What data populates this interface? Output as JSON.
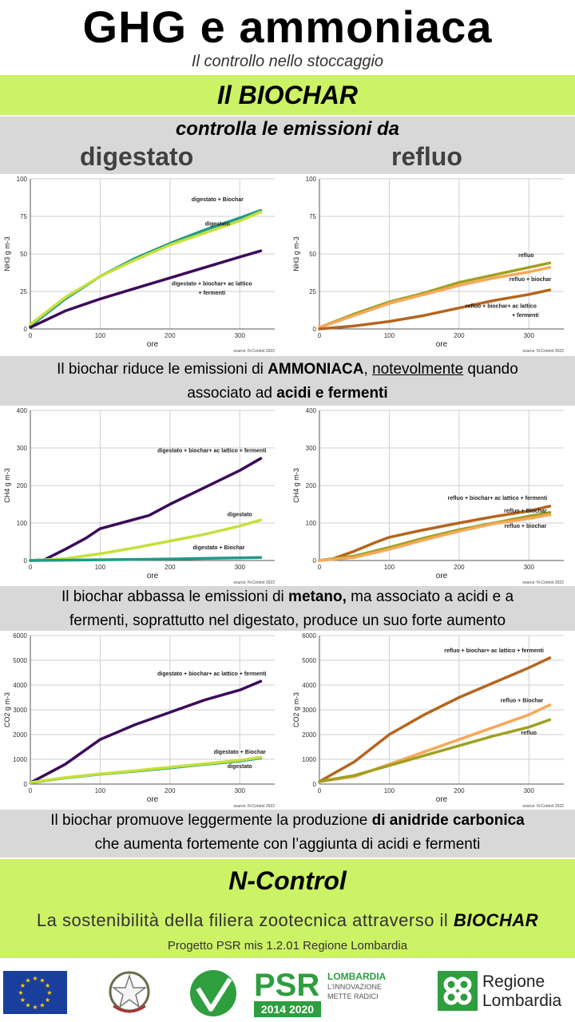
{
  "header": {
    "title": "GHG e ammoniaca",
    "subtitle": "Il controllo nello stoccaggio",
    "biochar_banner": "Il BIOCHAR",
    "controls": "controlla le emissioni da",
    "col_left": "digestato",
    "col_right": "refluo"
  },
  "captions": {
    "c1_a": "Il biochar riduce le emissioni di ",
    "c1_b": "AMMONIACA",
    "c1_c": ", ",
    "c1_d": "notevolmente",
    "c1_e": " quando",
    "c1_f": "associato ad ",
    "c1_g": "acidi e fermenti",
    "c2_a": "Il biochar abbassa le emissioni di ",
    "c2_b": "metano,",
    "c2_c": " ma associato a acidi e a",
    "c2_d": "fermenti, soprattutto nel digestato, produce un suo forte aumento",
    "c3_a": "Il biochar promuove leggermente la produzione ",
    "c3_b": "di anidride carbonica",
    "c3_c": "che aumenta fortemente con l’aggiunta di acidi e fermenti"
  },
  "footer": {
    "project": "N-Control",
    "tagline_a": "La sostenibilità della filiera zootecnica attraverso il ",
    "tagline_b": "BIOCHAR",
    "program": "Progetto PSR mis 1.2.01 Regione Lombardia",
    "psr": "PSR",
    "psr_years": "2014 2020",
    "lombardia": "LOMBARDIA",
    "lombardia_sub1": "L'INNOVAZIONE",
    "lombardia_sub2": "METTE RADICI",
    "regione1": "Regione",
    "regione2": "Lombardia"
  },
  "colors": {
    "dig_purple": "#3d0b5a",
    "dig_teal": "#1f9a8a",
    "dig_lime": "#c6e03a",
    "ref_brown": "#b5651d",
    "ref_olive": "#a0a020",
    "ref_peach": "#f7a85a",
    "green_band": "#ccf266",
    "grey_band": "#d8d8d8"
  },
  "chart_data": [
    {
      "id": "nh3_dig",
      "type": "line",
      "ylabel": "NH3 g m-3",
      "xlabel": "ore",
      "source": "source: N-Control 2022",
      "ylim": [
        0,
        100
      ],
      "yticks": [
        0,
        25,
        50,
        75,
        100
      ],
      "xlim": [
        0,
        350
      ],
      "xticks": [
        0,
        100,
        200,
        300
      ],
      "series": [
        {
          "name": "digestato + Biochar",
          "color": "#1f9a8a",
          "points": [
            [
              0,
              2
            ],
            [
              50,
              20
            ],
            [
              100,
              35
            ],
            [
              150,
              47
            ],
            [
              200,
              57
            ],
            [
              250,
              66
            ],
            [
              300,
              74
            ],
            [
              330,
              79
            ]
          ],
          "label_xy": [
            268,
            85
          ]
        },
        {
          "name": "digestato",
          "color": "#c6e03a",
          "points": [
            [
              0,
              3
            ],
            [
              50,
              21
            ],
            [
              100,
              35
            ],
            [
              150,
              46
            ],
            [
              200,
              56
            ],
            [
              250,
              64
            ],
            [
              300,
              72
            ],
            [
              330,
              78
            ]
          ],
          "label_xy": [
            268,
            69
          ]
        },
        {
          "name": "digestato + biochar+ ac lattico",
          "color": "#3d0b5a",
          "points": [
            [
              0,
              1
            ],
            [
              50,
              12
            ],
            [
              100,
              20
            ],
            [
              150,
              27
            ],
            [
              200,
              34
            ],
            [
              250,
              41
            ],
            [
              300,
              48
            ],
            [
              330,
              52
            ]
          ],
          "label_xy": [
            260,
            29
          ]
        },
        {
          "name": "+ fermenti",
          "color": "#3d0b5a",
          "points": [],
          "label_xy": [
            260,
            23
          ]
        }
      ]
    },
    {
      "id": "nh3_ref",
      "type": "line",
      "ylabel": "NH3 g m-3",
      "xlabel": "ore",
      "source": "source: N-Control 2022",
      "ylim": [
        0,
        100
      ],
      "yticks": [
        0,
        25,
        50,
        75,
        100
      ],
      "xlim": [
        0,
        350
      ],
      "xticks": [
        0,
        100,
        200,
        300
      ],
      "series": [
        {
          "name": "refluo",
          "color": "#a0a020",
          "points": [
            [
              0,
              1
            ],
            [
              50,
              10
            ],
            [
              100,
              18
            ],
            [
              150,
              24
            ],
            [
              200,
              31
            ],
            [
              250,
              36
            ],
            [
              300,
              41
            ],
            [
              330,
              44
            ]
          ],
          "label_xy": [
            296,
            48
          ]
        },
        {
          "name": "refluo + biochar",
          "color": "#f7a85a",
          "points": [
            [
              0,
              1
            ],
            [
              50,
              9
            ],
            [
              100,
              17
            ],
            [
              150,
              23
            ],
            [
              200,
              29
            ],
            [
              250,
              34
            ],
            [
              300,
              38
            ],
            [
              330,
              41
            ]
          ],
          "label_xy": [
            302,
            32
          ]
        },
        {
          "name": "refluo + biochar+ ac lattico",
          "color": "#b5651d",
          "points": [
            [
              0,
              0
            ],
            [
              50,
              2
            ],
            [
              100,
              5
            ],
            [
              150,
              9
            ],
            [
              200,
              14
            ],
            [
              250,
              19
            ],
            [
              300,
              23
            ],
            [
              330,
              26
            ]
          ],
          "label_xy": [
            260,
            14
          ]
        },
        {
          "name": "+ fermenti",
          "color": "#b5651d",
          "points": [],
          "label_xy": [
            295,
            8
          ]
        }
      ]
    },
    {
      "id": "ch4_dig",
      "type": "line",
      "ylabel": "CH4 g m-3",
      "xlabel": "ore",
      "source": "source: N-Control 2022",
      "ylim": [
        0,
        400
      ],
      "yticks": [
        0,
        100,
        200,
        300,
        400
      ],
      "xlim": [
        0,
        350
      ],
      "xticks": [
        0,
        100,
        200,
        300
      ],
      "series": [
        {
          "name": "digestato + biochar+ ac lattico + fermenti",
          "color": "#3d0b5a",
          "points": [
            [
              0,
              0
            ],
            [
              20,
              2
            ],
            [
              50,
              30
            ],
            [
              80,
              60
            ],
            [
              100,
              85
            ],
            [
              130,
              100
            ],
            [
              170,
              120
            ],
            [
              200,
              150
            ],
            [
              250,
              195
            ],
            [
              300,
              240
            ],
            [
              330,
              272
            ]
          ],
          "label_xy": [
            260,
            288
          ]
        },
        {
          "name": "digestato",
          "color": "#c6e03a",
          "points": [
            [
              0,
              0
            ],
            [
              50,
              5
            ],
            [
              100,
              18
            ],
            [
              150,
              34
            ],
            [
              200,
              52
            ],
            [
              250,
              70
            ],
            [
              300,
              92
            ],
            [
              330,
              108
            ]
          ],
          "label_xy": [
            300,
            118
          ]
        },
        {
          "name": "digestato + Biochar",
          "color": "#1f9a8a",
          "points": [
            [
              0,
              0
            ],
            [
              100,
              2
            ],
            [
              200,
              4
            ],
            [
              330,
              8
            ]
          ],
          "label_xy": [
            270,
            30
          ]
        }
      ]
    },
    {
      "id": "ch4_ref",
      "type": "line",
      "ylabel": "CH4 g m-3",
      "xlabel": "ore",
      "source": "source: N-Control 2022",
      "ylim": [
        0,
        400
      ],
      "yticks": [
        0,
        100,
        200,
        300,
        400
      ],
      "xlim": [
        0,
        350
      ],
      "xticks": [
        0,
        100,
        200,
        300
      ],
      "series": [
        {
          "name": "refluo + biochar+ ac lattico + fermenti",
          "color": "#b5651d",
          "points": [
            [
              0,
              0
            ],
            [
              20,
              5
            ],
            [
              50,
              25
            ],
            [
              80,
              48
            ],
            [
              100,
              62
            ],
            [
              150,
              82
            ],
            [
              200,
              100
            ],
            [
              250,
              117
            ],
            [
              300,
              132
            ],
            [
              330,
              145
            ]
          ],
          "label_xy": [
            255,
            162
          ]
        },
        {
          "name": "refluo + Biochar",
          "color": "#a0a020",
          "points": [
            [
              0,
              0
            ],
            [
              50,
              12
            ],
            [
              100,
              35
            ],
            [
              150,
              60
            ],
            [
              200,
              82
            ],
            [
              250,
              100
            ],
            [
              300,
              118
            ],
            [
              330,
              128
            ]
          ],
          "label_xy": [
            295,
            128
          ]
        },
        {
          "name": "refluo + biochar",
          "color": "#f7a85a",
          "points": [
            [
              0,
              0
            ],
            [
              50,
              8
            ],
            [
              100,
              30
            ],
            [
              150,
              55
            ],
            [
              200,
              78
            ],
            [
              250,
              98
            ],
            [
              300,
              112
            ],
            [
              330,
              122
            ]
          ],
          "label_xy": [
            295,
            87
          ]
        }
      ]
    },
    {
      "id": "co2_dig",
      "type": "line",
      "ylabel": "CO2 g m-3",
      "xlabel": "ore",
      "source": "source: N-Control 2022",
      "ylim": [
        0,
        6000
      ],
      "yticks": [
        0,
        1000,
        2000,
        3000,
        4000,
        5000,
        6000
      ],
      "xlim": [
        0,
        350
      ],
      "xticks": [
        0,
        100,
        200,
        300
      ],
      "series": [
        {
          "name": "digestato + biochar+ ac lattico + fermenti",
          "color": "#3d0b5a",
          "points": [
            [
              0,
              50
            ],
            [
              50,
              800
            ],
            [
              100,
              1800
            ],
            [
              150,
              2400
            ],
            [
              200,
              2900
            ],
            [
              250,
              3400
            ],
            [
              300,
              3800
            ],
            [
              330,
              4150
            ]
          ],
          "label_xy": [
            260,
            4380
          ]
        },
        {
          "name": "digestato + Biochar",
          "color": "#1f9a8a",
          "points": [
            [
              0,
              50
            ],
            [
              50,
              250
            ],
            [
              100,
              400
            ],
            [
              150,
              520
            ],
            [
              200,
              650
            ],
            [
              250,
              800
            ],
            [
              300,
              930
            ],
            [
              330,
              1050
            ]
          ],
          "label_xy": [
            300,
            1230
          ]
        },
        {
          "name": "digestato",
          "color": "#c6e03a",
          "points": [
            [
              0,
              60
            ],
            [
              50,
              260
            ],
            [
              100,
              410
            ],
            [
              150,
              540
            ],
            [
              200,
              680
            ],
            [
              250,
              820
            ],
            [
              300,
              960
            ],
            [
              330,
              1080
            ]
          ],
          "label_xy": [
            300,
            640
          ]
        }
      ]
    },
    {
      "id": "co2_ref",
      "type": "line",
      "ylabel": "CO2 g m-3",
      "xlabel": "ore",
      "source": "source: N-Control 2022",
      "ylim": [
        0,
        6000
      ],
      "yticks": [
        0,
        1000,
        2000,
        3000,
        4000,
        5000,
        6000
      ],
      "xlim": [
        0,
        350
      ],
      "xticks": [
        0,
        100,
        200,
        300
      ],
      "series": [
        {
          "name": "refluo + biochar+ ac lattico + fermenti",
          "color": "#b5651d",
          "points": [
            [
              0,
              100
            ],
            [
              50,
              900
            ],
            [
              100,
              2000
            ],
            [
              150,
              2800
            ],
            [
              200,
              3500
            ],
            [
              250,
              4100
            ],
            [
              300,
              4700
            ],
            [
              330,
              5100
            ]
          ],
          "label_xy": [
            250,
            5330
          ]
        },
        {
          "name": "refluo + Biochar",
          "color": "#f7a85a",
          "points": [
            [
              0,
              100
            ],
            [
              50,
              300
            ],
            [
              100,
              800
            ],
            [
              150,
              1300
            ],
            [
              200,
              1800
            ],
            [
              250,
              2300
            ],
            [
              300,
              2800
            ],
            [
              330,
              3200
            ]
          ],
          "label_xy": [
            290,
            3300
          ]
        },
        {
          "name": "refluo",
          "color": "#a0a020",
          "points": [
            [
              0,
              100
            ],
            [
              50,
              350
            ],
            [
              100,
              750
            ],
            [
              150,
              1150
            ],
            [
              200,
              1550
            ],
            [
              250,
              1950
            ],
            [
              300,
              2300
            ],
            [
              330,
              2600
            ]
          ],
          "label_xy": [
            300,
            2000
          ]
        }
      ]
    }
  ]
}
